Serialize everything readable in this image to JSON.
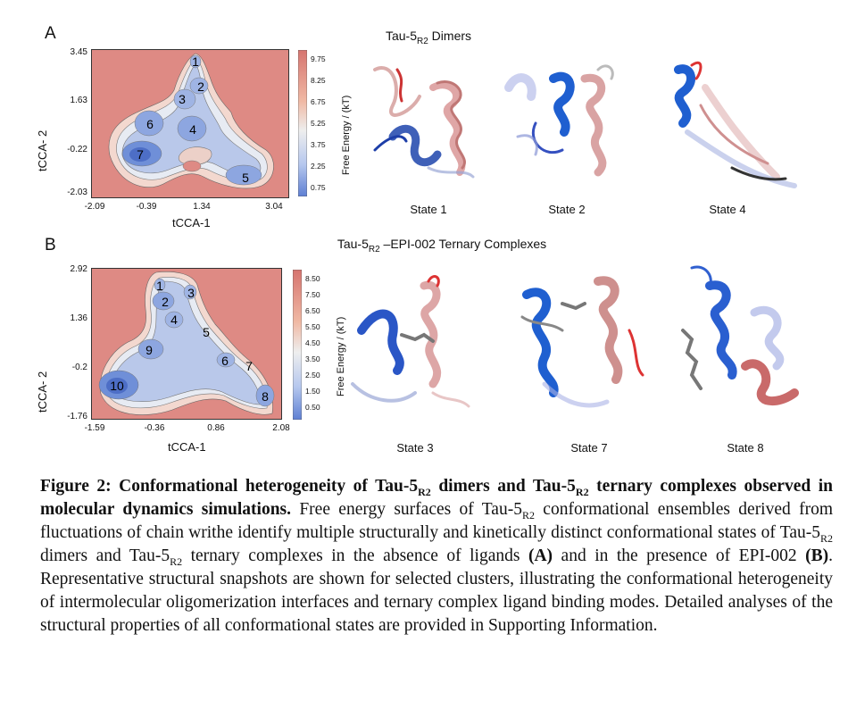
{
  "panel_a": {
    "letter": "A",
    "title_prefix": "Tau-5",
    "title_sub": "R2",
    "title_suffix": " Dimers",
    "xticks": [
      "-2.09",
      "-0.39",
      "1.34",
      "3.04"
    ],
    "yticks": [
      "3.45",
      "1.63",
      "-0.22",
      "-2.03"
    ],
    "xlabel": "tCCA-1",
    "ylabel": "tCCA- 2",
    "colorbar_label": "Free Energy / (kT)",
    "colorbar_ticks": [
      "9.75",
      "8.25",
      "6.75",
      "5.25",
      "3.75",
      "2.25",
      "0.75"
    ],
    "states": [
      "1",
      "2",
      "3",
      "4",
      "5",
      "6",
      "7"
    ],
    "snapshots": [
      "State 1",
      "State 2",
      "State 4"
    ]
  },
  "panel_b": {
    "letter": "B",
    "title_prefix": "Tau-5",
    "title_sub": "R2",
    "title_suffix": " –EPI-002 Ternary Complexes",
    "xticks": [
      "-1.59",
      "-0.36",
      "0.86",
      "2.08"
    ],
    "yticks": [
      "2.92",
      "1.36",
      "-0.2",
      "-1.76"
    ],
    "xlabel": "tCCA-1",
    "ylabel": "tCCA- 2",
    "colorbar_label": "Free Energy / (kT)",
    "colorbar_ticks": [
      "8.50",
      "7.50",
      "6.50",
      "5.50",
      "4.50",
      "3.50",
      "2.50",
      "1.50",
      "0.50"
    ],
    "states": [
      "1",
      "2",
      "3",
      "4",
      "5",
      "6",
      "7",
      "8",
      "9",
      "10"
    ],
    "snapshots": [
      "State 3",
      "State 7",
      "State 8"
    ]
  },
  "caption": {
    "title_1": "Figure 2: Conformational heterogeneity of Tau-5",
    "title_sub_1": "R2",
    "title_2": " dimers and Tau-5",
    "title_sub_2": "R2",
    "title_3": " ternary complexes observed in molecular dynamics simulations.",
    "text_1": " Free energy surfaces of Tau-5",
    "text_sub_1": "R2",
    "text_2": " conformational ensembles derived from fluctuations of chain writhe identify multiple structurally and kinetically distinct conformational states of Tau-5",
    "text_sub_2": "R2",
    "text_3": " dimers and Tau-5",
    "text_sub_3": "R2",
    "text_4": " ternary complexes in the absence of ligands ",
    "bold_a": "(A)",
    "text_5": " and in the presence of EPI-002 ",
    "bold_b": "(B)",
    "text_6": ". Representative structural snapshots are shown for selected clusters, illustrating the conformational heterogeneity of intermolecular oligomerization interfaces and ternary complex ligand binding modes. Detailed analyses of the structural properties of all conformational states are provided in Supporting Information."
  },
  "colors": {
    "high_energy": "#de8a84",
    "low_energy": "#4a6fc8",
    "mid_energy": "#eef0f5"
  }
}
